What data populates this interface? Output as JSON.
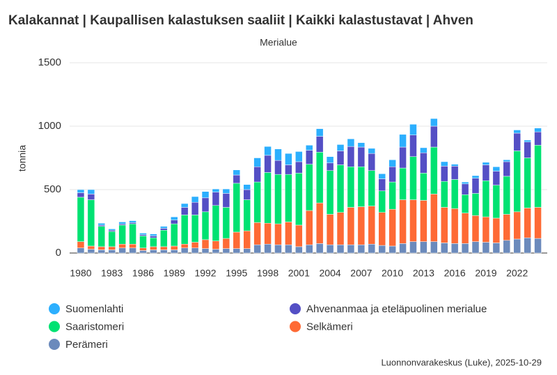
{
  "chart_data": {
    "type": "stacked-bar",
    "title": "Kalakannat | Kaupallisen kalastuksen saaliit | Kaikki kalastustavat | Ahven",
    "subtitle": "Merialue",
    "y_label": "tonnia",
    "source": "Luonnonvarakeskus (Luke), 2025-10-29",
    "categories": [
      "1980",
      null,
      null,
      "1983",
      null,
      null,
      "1986",
      null,
      null,
      "1989",
      null,
      null,
      "1992",
      null,
      null,
      "1995",
      null,
      null,
      "1998",
      null,
      null,
      "2001",
      null,
      null,
      "2004",
      null,
      null,
      "2007",
      null,
      null,
      "2010",
      null,
      null,
      "2013",
      null,
      null,
      "2016",
      null,
      null,
      "2019",
      null,
      null,
      "2022",
      null,
      null
    ],
    "ylim": [
      0,
      1500
    ],
    "yticks": [
      0,
      500,
      1000,
      1500
    ],
    "grid": true,
    "series": [
      {
        "name": "Perämeri",
        "color": "#6b8abc",
        "values": [
          40,
          30,
          25,
          25,
          40,
          40,
          20,
          25,
          25,
          25,
          40,
          40,
          35,
          30,
          35,
          35,
          35,
          65,
          70,
          65,
          65,
          50,
          65,
          75,
          65,
          65,
          65,
          65,
          70,
          60,
          55,
          75,
          90,
          90,
          90,
          80,
          75,
          75,
          90,
          85,
          80,
          100,
          110,
          120,
          115
        ]
      },
      {
        "name": "Selkämeri",
        "color": "#fe6a35",
        "values": [
          50,
          25,
          25,
          25,
          30,
          30,
          20,
          25,
          25,
          30,
          30,
          45,
          70,
          65,
          80,
          130,
          140,
          175,
          165,
          165,
          180,
          170,
          270,
          320,
          240,
          255,
          295,
          300,
          300,
          260,
          290,
          345,
          330,
          325,
          375,
          280,
          275,
          240,
          205,
          200,
          195,
          205,
          215,
          235,
          245
        ]
      },
      {
        "name": "Saaristomeri",
        "color": "#00e272",
        "values": [
          350,
          365,
          160,
          120,
          150,
          160,
          95,
          70,
          130,
          175,
          230,
          215,
          220,
          280,
          245,
          385,
          245,
          320,
          400,
          390,
          375,
          410,
          365,
          400,
          345,
          375,
          320,
          315,
          280,
          170,
          215,
          250,
          340,
          215,
          370,
          205,
          230,
          145,
          175,
          285,
          260,
          300,
          480,
          395,
          490
        ]
      },
      {
        "name": "Ahvenanmaa ja eteläpuolinen merialue",
        "color": "#544fc5",
        "values": [
          35,
          45,
          10,
          10,
          10,
          10,
          10,
          15,
          15,
          30,
          60,
          100,
          110,
          105,
          110,
          65,
          80,
          120,
          135,
          110,
          75,
          90,
          110,
          125,
          60,
          110,
          160,
          155,
          135,
          95,
          120,
          165,
          170,
          160,
          165,
          120,
          105,
          85,
          120,
          125,
          110,
          115,
          140,
          125,
          105
        ]
      },
      {
        "name": "Suomenlahti",
        "color": "#2caffe",
        "values": [
          25,
          35,
          15,
          10,
          15,
          15,
          12,
          15,
          15,
          25,
          30,
          45,
          50,
          25,
          35,
          40,
          40,
          70,
          70,
          90,
          90,
          80,
          40,
          60,
          50,
          50,
          60,
          35,
          40,
          40,
          55,
          100,
          85,
          40,
          60,
          35,
          15,
          15,
          20,
          20,
          35,
          15,
          25,
          15,
          30
        ]
      }
    ]
  }
}
